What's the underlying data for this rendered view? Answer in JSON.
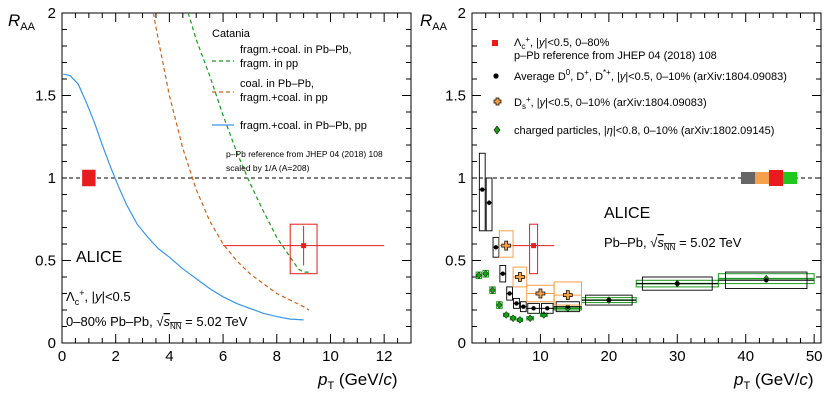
{
  "chart_data": [
    {
      "type": "line",
      "xlabel": "p_T (GeV/c)",
      "ylabel": "R_AA",
      "xlim": [
        0,
        13
      ],
      "ylim": [
        0,
        2
      ],
      "x_ticks": [
        "0",
        "2",
        "4",
        "6",
        "8",
        "10",
        "12"
      ],
      "y_ticks": [
        "0",
        "0.5",
        "1",
        "1.5",
        "2"
      ],
      "reference_line": 1,
      "legend_header": "Catania",
      "series": [
        {
          "name": "fragm.+coal. in Pb–Pb, fragm. in pp",
          "color": "#1a9a1a",
          "style": "dashed",
          "x": [
            4.7,
            5.0,
            5.5,
            6.0,
            6.5,
            7.0,
            7.5,
            8.0,
            8.5,
            8.8,
            9.0,
            9.2
          ],
          "y": [
            2.0,
            1.84,
            1.62,
            1.38,
            1.16,
            0.97,
            0.8,
            0.64,
            0.52,
            0.45,
            0.43,
            0.43
          ]
        },
        {
          "name": "coal. in Pb–Pb, fragm.+coal. in pp",
          "color": "#c8641e",
          "style": "dashed",
          "x": [
            3.4,
            3.6,
            4.0,
            4.5,
            5.0,
            5.5,
            6.0,
            6.5,
            7.0,
            7.5,
            8.0,
            8.5,
            9.0,
            9.2
          ],
          "y": [
            2.0,
            1.83,
            1.5,
            1.18,
            0.93,
            0.74,
            0.6,
            0.5,
            0.42,
            0.36,
            0.3,
            0.26,
            0.22,
            0.2
          ]
        },
        {
          "name": "fragm.+coal. in Pb–Pb, pp",
          "color": "#3c96e6",
          "style": "solid",
          "x": [
            0.05,
            0.3,
            0.6,
            0.9,
            1.2,
            1.5,
            1.8,
            2.1,
            2.4,
            2.8,
            3.2,
            3.6,
            4.0,
            4.5,
            5.0,
            5.5,
            6.0,
            6.5,
            7.0,
            7.5,
            8.0,
            8.5,
            9.0
          ],
          "y": [
            1.63,
            1.62,
            1.57,
            1.46,
            1.34,
            1.2,
            1.07,
            0.95,
            0.84,
            0.72,
            0.64,
            0.57,
            0.52,
            0.45,
            0.39,
            0.33,
            0.28,
            0.24,
            0.21,
            0.18,
            0.16,
            0.145,
            0.14
          ]
        }
      ],
      "data_points": [
        {
          "x": 9.0,
          "y": 0.59,
          "xerr": 3.0,
          "stat": 0.12,
          "sys_x": [
            8.5,
            9.5
          ],
          "sys_y": [
            0.42,
            0.72
          ],
          "color": "#e81c1c"
        }
      ],
      "pPb_box": {
        "x": [
          0.75,
          1.25
        ],
        "y": [
          0.95,
          1.05
        ],
        "color": "#e81c1c"
      },
      "annotations": [
        "p–Pb reference from JHEP 04 (2018) 108",
        "scaled by 1/A (A=208)",
        "ALICE",
        "Λc+, |y|<0.5",
        "0–80% Pb–Pb, √sNN = 5.02 TeV"
      ]
    },
    {
      "type": "scatter",
      "xlabel": "p_T (GeV/c)",
      "ylabel": "R_AA",
      "xlim": [
        0,
        51
      ],
      "ylim": [
        0,
        2
      ],
      "x_ticks": [
        "10",
        "20",
        "30",
        "40",
        "50"
      ],
      "y_ticks": [
        "0",
        "0.5",
        "1",
        "1.5",
        "2"
      ],
      "reference_line": 1,
      "legend": [
        {
          "text": "Λc+, |y|<0.5, 0–80%",
          "line2": "p–Pb reference from JHEP 04 (2018) 108",
          "color": "#e81c1c",
          "marker": "square"
        },
        {
          "text": "Average D0, D+, D*+, |y|<0.5, 0–10% (arXiv:1804.09083)",
          "color": "#000000",
          "marker": "circle"
        },
        {
          "text": "Ds+, |y|<0.5, 0–10% (arXiv:1804.09083)",
          "color": "#f5a04a",
          "marker": "cross"
        },
        {
          "text": "charged particles, |η|<0.8, 0–10% (arXiv:1802.09145)",
          "color": "#1a9a1a",
          "marker": "diamond"
        }
      ],
      "series": [
        {
          "name": "Λc+",
          "color": "#e81c1c",
          "points": [
            {
              "x": 9.0,
              "y": 0.59,
              "xlo": 6,
              "xhi": 12,
              "sys": [
                0.42,
                0.72
              ]
            }
          ]
        },
        {
          "name": "Average D",
          "color": "#000000",
          "points": [
            {
              "x": 1.5,
              "y": 0.93,
              "xlo": 1,
              "xhi": 2,
              "sys": [
                0.68,
                1.15
              ]
            },
            {
              "x": 2.5,
              "y": 0.85,
              "xlo": 2,
              "xhi": 3,
              "sys": [
                0.68,
                1.0
              ]
            },
            {
              "x": 3.5,
              "y": 0.58,
              "xlo": 3,
              "xhi": 4,
              "sys": [
                0.52,
                0.64
              ]
            },
            {
              "x": 4.5,
              "y": 0.42,
              "xlo": 4,
              "xhi": 5,
              "sys": [
                0.37,
                0.47
              ]
            },
            {
              "x": 5.5,
              "y": 0.3,
              "xlo": 5,
              "xhi": 6,
              "sys": [
                0.26,
                0.34
              ]
            },
            {
              "x": 6.5,
              "y": 0.24,
              "xlo": 6,
              "xhi": 7,
              "sys": [
                0.21,
                0.27
              ]
            },
            {
              "x": 7.5,
              "y": 0.22,
              "xlo": 7,
              "xhi": 8,
              "sys": [
                0.19,
                0.25
              ]
            },
            {
              "x": 9.0,
              "y": 0.21,
              "xlo": 8,
              "xhi": 10,
              "sys": [
                0.18,
                0.24
              ]
            },
            {
              "x": 11.0,
              "y": 0.21,
              "xlo": 10,
              "xhi": 12,
              "sys": [
                0.18,
                0.24
              ]
            },
            {
              "x": 14.0,
              "y": 0.22,
              "xlo": 12,
              "xhi": 16,
              "sys": [
                0.19,
                0.25
              ]
            },
            {
              "x": 20.0,
              "y": 0.26,
              "xlo": 16,
              "xhi": 24,
              "sys": [
                0.23,
                0.29
              ]
            },
            {
              "x": 30.0,
              "y": 0.36,
              "xlo": 24,
              "xhi": 36,
              "sys": [
                0.32,
                0.4
              ]
            },
            {
              "x": 43.0,
              "y": 0.38,
              "xlo": 36,
              "xhi": 50,
              "sys": [
                0.33,
                0.43
              ]
            }
          ]
        },
        {
          "name": "Ds+",
          "color": "#f5a04a",
          "points": [
            {
              "x": 5.0,
              "y": 0.59,
              "xlo": 4,
              "xhi": 6,
              "sys": [
                0.52,
                0.68
              ]
            },
            {
              "x": 7.0,
              "y": 0.4,
              "xlo": 6,
              "xhi": 8,
              "sys": [
                0.34,
                0.46
              ]
            },
            {
              "x": 10.0,
              "y": 0.3,
              "xlo": 8,
              "xhi": 12,
              "sys": [
                0.25,
                0.35
              ]
            },
            {
              "x": 14.0,
              "y": 0.29,
              "xlo": 12,
              "xhi": 16,
              "sys": [
                0.23,
                0.37
              ]
            }
          ]
        },
        {
          "name": "charged particles",
          "color": "#1a9a1a",
          "points": [
            {
              "x": 1.0,
              "y": 0.41,
              "xlo": 0.6,
              "xhi": 1.4,
              "sys": [
                0.39,
                0.43
              ]
            },
            {
              "x": 2.0,
              "y": 0.42,
              "xlo": 1.6,
              "xhi": 2.4,
              "sys": [
                0.4,
                0.44
              ]
            },
            {
              "x": 3.0,
              "y": 0.32,
              "xlo": 2.6,
              "xhi": 3.4,
              "sys": [
                0.3,
                0.34
              ]
            },
            {
              "x": 4.0,
              "y": 0.23,
              "xlo": 3.6,
              "xhi": 4.4,
              "sys": [
                0.21,
                0.25
              ]
            },
            {
              "x": 5.0,
              "y": 0.17,
              "xlo": 4.6,
              "xhi": 5.4,
              "sys": [
                0.16,
                0.18
              ]
            },
            {
              "x": 6.0,
              "y": 0.15,
              "xlo": 5.6,
              "xhi": 6.4,
              "sys": [
                0.14,
                0.16
              ]
            },
            {
              "x": 7.0,
              "y": 0.14,
              "xlo": 6.6,
              "xhi": 7.4,
              "sys": [
                0.13,
                0.15
              ]
            },
            {
              "x": 8.5,
              "y": 0.15,
              "xlo": 8,
              "xhi": 9,
              "sys": [
                0.14,
                0.16
              ]
            },
            {
              "x": 10.5,
              "y": 0.17,
              "xlo": 10,
              "xhi": 11,
              "sys": [
                0.16,
                0.18
              ]
            },
            {
              "x": 14.0,
              "y": 0.21,
              "xlo": 12,
              "xhi": 16,
              "sys": [
                0.2,
                0.22
              ]
            },
            {
              "x": 20.0,
              "y": 0.26,
              "xlo": 16,
              "xhi": 24,
              "sys": [
                0.245,
                0.275
              ]
            },
            {
              "x": 30.0,
              "y": 0.36,
              "xlo": 24,
              "xhi": 36,
              "sys": [
                0.34,
                0.38
              ]
            },
            {
              "x": 43.0,
              "y": 0.39,
              "xlo": 36,
              "xhi": 50,
              "sys": [
                0.36,
                0.42
              ]
            }
          ]
        }
      ],
      "norm_boxes": [
        {
          "color": "#666666"
        },
        {
          "color": "#f5a04a"
        },
        {
          "color": "#e81c1c"
        },
        {
          "color": "#1ec81e"
        }
      ],
      "annotations": [
        "ALICE",
        "Pb–Pb, √sNN = 5.02 TeV"
      ]
    }
  ]
}
